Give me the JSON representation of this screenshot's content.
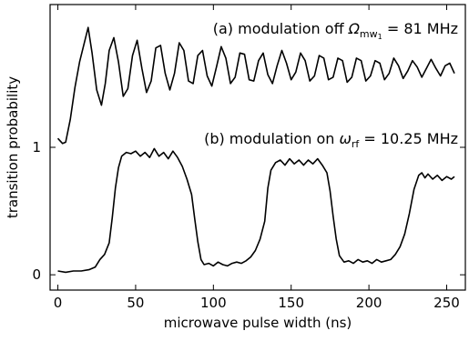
{
  "chart_data": {
    "type": "line",
    "xlabel": "microwave pulse width (ns)",
    "ylabel": "transition probability",
    "xlim": [
      -5,
      262
    ],
    "ylim": [
      -0.12,
      2.12
    ],
    "x_ticks": [
      0,
      50,
      100,
      150,
      200,
      250
    ],
    "x_tick_labels": [
      "0",
      "50",
      "100",
      "150",
      "200",
      "250"
    ],
    "y_ticks": [
      0,
      1
    ],
    "y_tick_labels": [
      "0",
      "1"
    ],
    "grid": false,
    "legend": "none",
    "annotations": [
      {
        "id": "a",
        "prefix": "(a) modulation off ",
        "symbol": "Ω",
        "sub": "mw",
        "sub2": "1",
        "suffix": " = 81 MHz"
      },
      {
        "id": "b",
        "prefix": "(b) modulation on ",
        "symbol": "ω",
        "sub": "rf",
        "sub2": "",
        "suffix": " = 10.25 MHz"
      }
    ],
    "series": [
      {
        "color": "#000000",
        "x": [
          0,
          3,
          5,
          8,
          11,
          14,
          17,
          19.5,
          22,
          25,
          28,
          30.5,
          33,
          36,
          39,
          42,
          45,
          48,
          51,
          54,
          57,
          60,
          63,
          66,
          69,
          72,
          75,
          78,
          81,
          84,
          87,
          90,
          93,
          96,
          99,
          102,
          105,
          108,
          111,
          114,
          117,
          120,
          123,
          126,
          129,
          132,
          135,
          138,
          141,
          144,
          147,
          150,
          153,
          156,
          159,
          162,
          165,
          168,
          171,
          174,
          177,
          180,
          183,
          186,
          189,
          192,
          195,
          198,
          201,
          204,
          207,
          210,
          213,
          216,
          219,
          222,
          225,
          228,
          231,
          234,
          237,
          240,
          243,
          246,
          249,
          252,
          255
        ],
        "y": [
          1.07,
          1.03,
          1.04,
          1.22,
          1.47,
          1.67,
          1.82,
          1.94,
          1.74,
          1.45,
          1.33,
          1.5,
          1.76,
          1.86,
          1.67,
          1.4,
          1.46,
          1.72,
          1.84,
          1.62,
          1.43,
          1.52,
          1.78,
          1.8,
          1.58,
          1.45,
          1.58,
          1.82,
          1.76,
          1.52,
          1.5,
          1.72,
          1.76,
          1.56,
          1.48,
          1.63,
          1.79,
          1.7,
          1.5,
          1.55,
          1.74,
          1.73,
          1.53,
          1.52,
          1.68,
          1.74,
          1.57,
          1.5,
          1.64,
          1.76,
          1.66,
          1.53,
          1.59,
          1.74,
          1.68,
          1.52,
          1.56,
          1.72,
          1.7,
          1.53,
          1.55,
          1.7,
          1.68,
          1.51,
          1.55,
          1.7,
          1.68,
          1.52,
          1.56,
          1.68,
          1.66,
          1.53,
          1.58,
          1.7,
          1.64,
          1.54,
          1.6,
          1.68,
          1.63,
          1.55,
          1.62,
          1.69,
          1.62,
          1.56,
          1.64,
          1.66,
          1.58
        ]
      },
      {
        "color": "#000000",
        "x": [
          0,
          5,
          10,
          15,
          20,
          24,
          27,
          30,
          33,
          35,
          37,
          39,
          41,
          44,
          47,
          50,
          53,
          56,
          59,
          62,
          65,
          68,
          71,
          74,
          77,
          80,
          83,
          86,
          88,
          90,
          92,
          94,
          97,
          100,
          103,
          106,
          109,
          112,
          115,
          118,
          121,
          124,
          127,
          130,
          133,
          135,
          137,
          140,
          143,
          146,
          149,
          152,
          155,
          158,
          161,
          164,
          167,
          170,
          173,
          175,
          177,
          179,
          181,
          184,
          187,
          190,
          193,
          196,
          199,
          202,
          205,
          208,
          211,
          214,
          217,
          220,
          223,
          226,
          229,
          232,
          234,
          236,
          238,
          241,
          244,
          247,
          250,
          253,
          255
        ],
        "y": [
          0.03,
          0.02,
          0.03,
          0.03,
          0.04,
          0.06,
          0.12,
          0.16,
          0.25,
          0.45,
          0.68,
          0.84,
          0.93,
          0.96,
          0.95,
          0.97,
          0.93,
          0.96,
          0.92,
          0.99,
          0.93,
          0.96,
          0.91,
          0.97,
          0.92,
          0.85,
          0.75,
          0.63,
          0.44,
          0.26,
          0.12,
          0.08,
          0.09,
          0.07,
          0.1,
          0.08,
          0.07,
          0.09,
          0.1,
          0.09,
          0.11,
          0.14,
          0.19,
          0.28,
          0.42,
          0.68,
          0.82,
          0.88,
          0.9,
          0.86,
          0.91,
          0.87,
          0.9,
          0.86,
          0.9,
          0.87,
          0.91,
          0.86,
          0.8,
          0.66,
          0.46,
          0.28,
          0.15,
          0.1,
          0.11,
          0.09,
          0.12,
          0.1,
          0.11,
          0.09,
          0.12,
          0.1,
          0.11,
          0.12,
          0.16,
          0.22,
          0.32,
          0.48,
          0.67,
          0.78,
          0.8,
          0.76,
          0.79,
          0.75,
          0.78,
          0.74,
          0.77,
          0.75,
          0.77
        ]
      }
    ]
  }
}
